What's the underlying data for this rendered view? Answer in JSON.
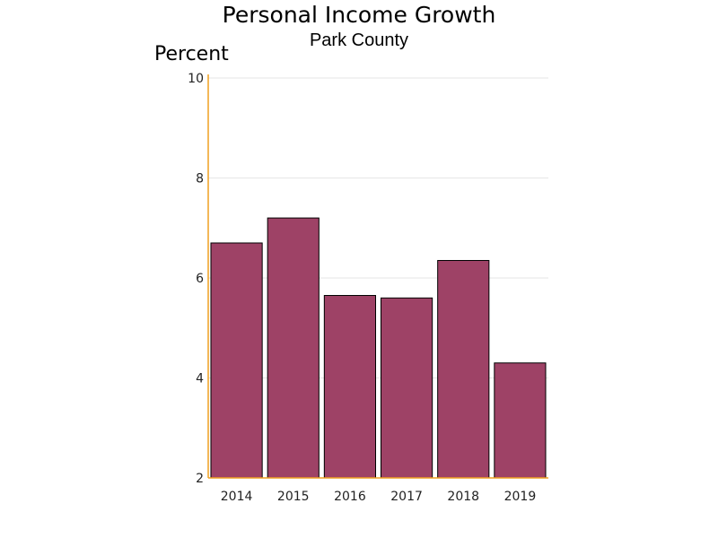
{
  "chart_data": {
    "type": "bar",
    "title": "Personal Income Growth",
    "subtitle": "Park County",
    "ylabel": "Percent",
    "xlabel": "",
    "categories": [
      "2014",
      "2015",
      "2016",
      "2017",
      "2018",
      "2019"
    ],
    "values": [
      6.7,
      7.2,
      5.65,
      5.6,
      6.35,
      4.3
    ],
    "ylim": [
      2,
      10
    ],
    "yticks": [
      2,
      4,
      6,
      8,
      10
    ],
    "grid": true,
    "colors": {
      "bar": "#9e4266",
      "bar_outline": "#000000",
      "axis": "#f0a020",
      "grid": "#e6e6e6"
    }
  }
}
